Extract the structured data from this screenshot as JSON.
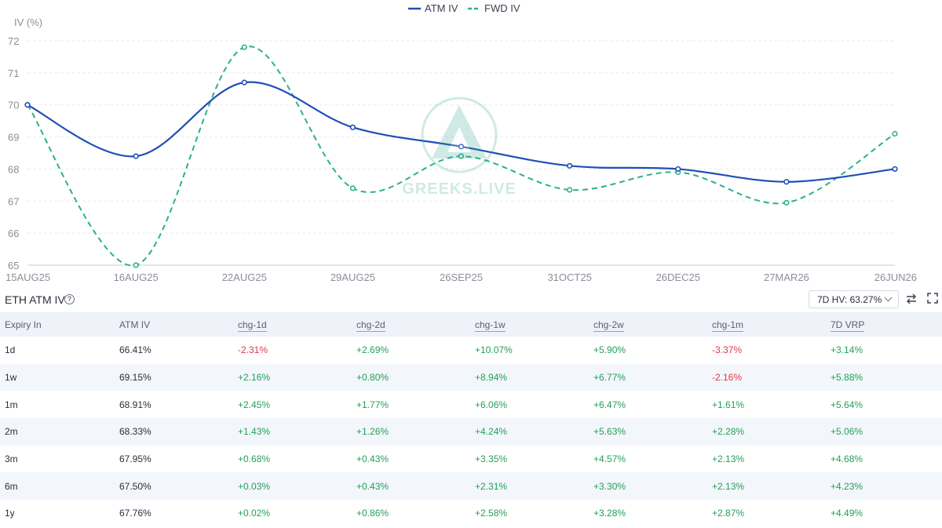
{
  "chart_data": {
    "type": "line",
    "categories": [
      "15AUG25",
      "16AUG25",
      "22AUG25",
      "29AUG25",
      "26SEP25",
      "31OCT25",
      "26DEC25",
      "27MAR26",
      "26JUN26"
    ],
    "series": [
      {
        "name": "ATM IV",
        "color": "#1f4fb5",
        "style": "solid",
        "values": [
          70.0,
          68.4,
          70.7,
          69.3,
          68.7,
          68.1,
          68.0,
          67.6,
          68.0
        ]
      },
      {
        "name": "FWD IV",
        "color": "#2bb08f",
        "style": "dashed",
        "values": [
          70.0,
          65.0,
          71.8,
          67.4,
          68.4,
          67.35,
          67.9,
          66.95,
          69.1
        ]
      }
    ],
    "ylabel": "IV (%)",
    "ylim": [
      65,
      72
    ],
    "yticks": [
      65,
      66,
      67,
      68,
      69,
      70,
      71,
      72
    ],
    "grid": true,
    "legend_position": "top-center"
  },
  "watermark": {
    "text": "GREEKS.LIVE"
  },
  "table": {
    "title": "ETH ATM IV",
    "hv_select": "7D HV: 63.27%",
    "columns": [
      "Expiry In",
      "ATM IV",
      "chg-1d",
      "chg-2d",
      "chg-1w",
      "chg-2w",
      "chg-1m",
      "7D VRP"
    ],
    "rows": [
      [
        "1d",
        "66.41%",
        "-2.31%",
        "+2.69%",
        "+10.07%",
        "+5.90%",
        "-3.37%",
        "+3.14%"
      ],
      [
        "1w",
        "69.15%",
        "+2.16%",
        "+0.80%",
        "+8.94%",
        "+6.77%",
        "-2.16%",
        "+5.88%"
      ],
      [
        "1m",
        "68.91%",
        "+2.45%",
        "+1.77%",
        "+6.06%",
        "+6.47%",
        "+1.61%",
        "+5.64%"
      ],
      [
        "2m",
        "68.33%",
        "+1.43%",
        "+1.26%",
        "+4.24%",
        "+5.63%",
        "+2.28%",
        "+5.06%"
      ],
      [
        "3m",
        "67.95%",
        "+0.68%",
        "+0.43%",
        "+3.35%",
        "+4.57%",
        "+2.13%",
        "+4.68%"
      ],
      [
        "6m",
        "67.50%",
        "+0.03%",
        "+0.43%",
        "+2.31%",
        "+3.30%",
        "+2.13%",
        "+4.23%"
      ],
      [
        "1y",
        "67.76%",
        "+0.02%",
        "+0.86%",
        "+2.58%",
        "+3.28%",
        "+2.87%",
        "+4.49%"
      ]
    ]
  },
  "colors": {
    "positive": "#22a05a",
    "negative": "#e0384b",
    "header_bg": "#eff2f8",
    "row_alt_bg": "#f3f6fb"
  }
}
